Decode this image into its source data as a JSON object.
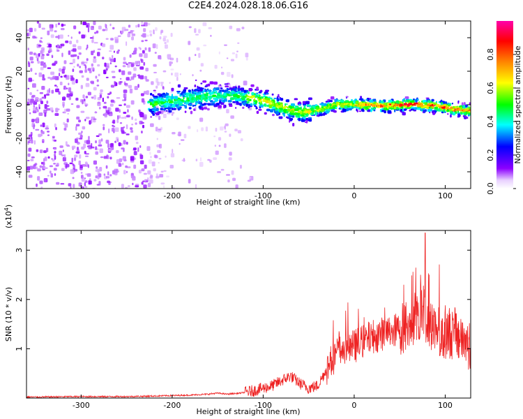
{
  "title": "C2E4.2024.028.18.06.G16",
  "chart_data": [
    {
      "type": "heatmap",
      "title": "C2E4.2024.028.18.06.G16",
      "xlabel": "Height of straight line (km)",
      "ylabel": "Frequency (Hz)",
      "xlim": [
        -360,
        128
      ],
      "ylim": [
        -50,
        50
      ],
      "xticks": [
        -300,
        -200,
        -100,
        0,
        100
      ],
      "yticks": [
        -40,
        -20,
        0,
        20,
        40
      ],
      "colorbar": {
        "label": "Normalized spectral amplitude",
        "range": [
          0,
          1
        ],
        "ticks": [
          "0.0",
          "0.2",
          "0.4",
          "0.6",
          "0.8"
        ],
        "colors": [
          "#ffffff",
          "#8c00ff",
          "#0000ff",
          "#00ffff",
          "#00ff00",
          "#ffff00",
          "#ff8000",
          "#ff0000",
          "#ff00aa"
        ]
      },
      "ridge": {
        "description_points": [
          {
            "x": -225,
            "y": 1
          },
          {
            "x": -200,
            "y": 3
          },
          {
            "x": -160,
            "y": 6
          },
          {
            "x": -130,
            "y": 6
          },
          {
            "x": -100,
            "y": 3
          },
          {
            "x": -80,
            "y": -1
          },
          {
            "x": -60,
            "y": -4
          },
          {
            "x": -40,
            "y": -2
          },
          {
            "x": -20,
            "y": 1
          },
          {
            "x": 0,
            "y": 1
          },
          {
            "x": 30,
            "y": 0
          },
          {
            "x": 60,
            "y": 1
          },
          {
            "x": 90,
            "y": 0
          },
          {
            "x": 110,
            "y": -2
          },
          {
            "x": 128,
            "y": -3
          }
        ]
      }
    },
    {
      "type": "line",
      "xlabel": "Height of straight line (km)",
      "ylabel": "SNR (10 * v/v)",
      "ylabel_multiplier": "(x10",
      "ylabel_exponent": "4",
      "ylabel_close": ")",
      "xlim": [
        -360,
        128
      ],
      "ylim": [
        0,
        3.4
      ],
      "xticks": [
        -300,
        -200,
        -100,
        0,
        100
      ],
      "yticks": [
        1,
        2,
        3
      ],
      "color": "#ee2222",
      "series": [
        {
          "x": [
            -360,
            -300,
            -250,
            -220,
            -200,
            -180,
            -160,
            -150,
            -140,
            -125,
            -110,
            -100,
            -90,
            -80,
            -70,
            -60,
            -50,
            -40,
            -30,
            -20,
            -10,
            0,
            10,
            20,
            30,
            40,
            50,
            60,
            70,
            75,
            80,
            90,
            100,
            110,
            120,
            128
          ],
          "y": [
            0.02,
            0.03,
            0.03,
            0.04,
            0.05,
            0.06,
            0.08,
            0.1,
            0.08,
            0.1,
            0.15,
            0.2,
            0.25,
            0.35,
            0.45,
            0.3,
            0.2,
            0.25,
            0.6,
            0.9,
            1.0,
            1.05,
            1.15,
            1.25,
            1.3,
            1.35,
            1.4,
            1.5,
            1.7,
            1.8,
            1.6,
            1.35,
            1.35,
            1.3,
            1.2,
            1.0
          ]
        }
      ]
    }
  ]
}
